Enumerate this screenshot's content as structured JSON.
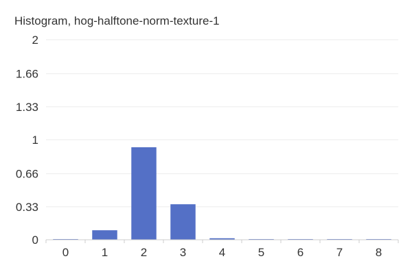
{
  "chart_data": {
    "type": "bar",
    "title": "Histogram, hog-halftone-norm-texture-1",
    "xlabel": "",
    "ylabel": "",
    "categories": [
      "0",
      "1",
      "2",
      "3",
      "4",
      "5",
      "6",
      "7",
      "8"
    ],
    "values": [
      0.002,
      0.095,
      0.925,
      0.355,
      0.015,
      0.003,
      0.002,
      0.002,
      0.002
    ],
    "ylim": [
      0,
      2
    ],
    "yticks": [
      0,
      0.33,
      0.66,
      1,
      1.33,
      1.66,
      2
    ],
    "ytick_labels": [
      "0",
      "0.33",
      "0.66",
      "1",
      "1.33",
      "1.66",
      "2"
    ],
    "grid": true,
    "bar_color": "#5470C6"
  }
}
